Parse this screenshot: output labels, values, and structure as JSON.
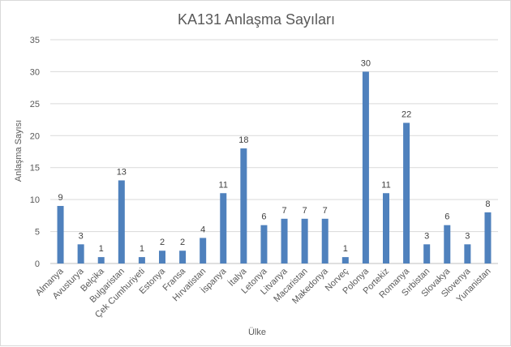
{
  "chart_data": {
    "type": "bar",
    "title": "KA131 Anlaşma Sayıları",
    "xlabel": "Ülke",
    "ylabel": "Anlaşma Sayısı",
    "ylim": [
      0,
      35
    ],
    "yticks": [
      0,
      5,
      10,
      15,
      20,
      25,
      30,
      35
    ],
    "grid": true,
    "legend": "none",
    "bar_color": "#4f81bd",
    "categories": [
      "Almanya",
      "Avusturya",
      "Belçika",
      "Bulgaristan",
      "Çek Cumhuriyeti",
      "Estonya",
      "Fransa",
      "Hırvatistan",
      "İspanya",
      "İtalya",
      "Letonya",
      "Litvanya",
      "Macaristan",
      "Makedonya",
      "Norveç",
      "Polonya",
      "Portekiz",
      "Romanya",
      "Sırbistan",
      "Slovakya",
      "Slovenya",
      "Yunanistan"
    ],
    "values": [
      9,
      3,
      1,
      13,
      1,
      2,
      2,
      4,
      11,
      18,
      6,
      7,
      7,
      7,
      1,
      30,
      11,
      22,
      3,
      6,
      3,
      8
    ]
  }
}
